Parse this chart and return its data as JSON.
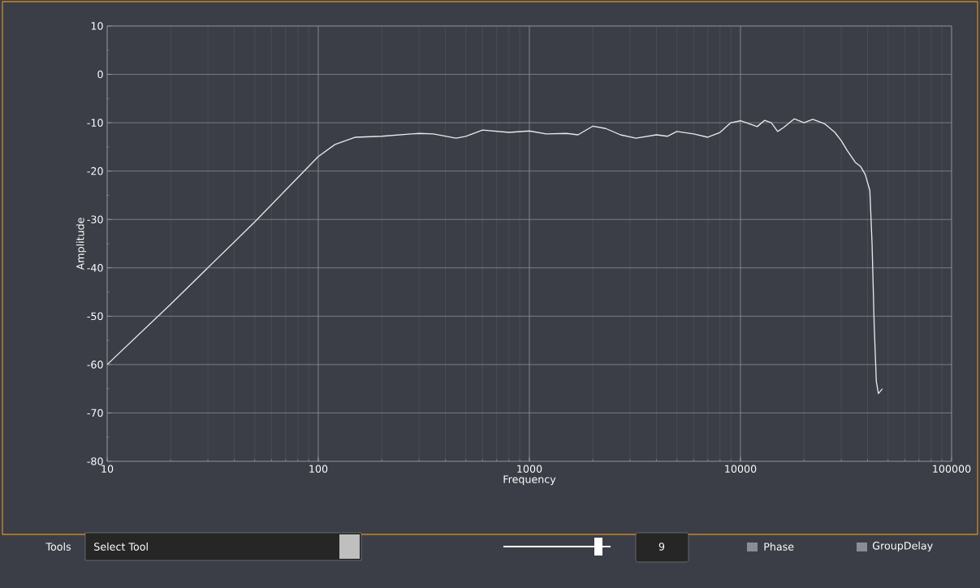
{
  "chart_data": {
    "type": "line",
    "xlabel": "Frequency",
    "ylabel": "Amplitude",
    "x": [
      10,
      20,
      50,
      100,
      120,
      150,
      200,
      300,
      350,
      450,
      500,
      600,
      800,
      1000,
      1200,
      1500,
      1700,
      2000,
      2300,
      2700,
      3200,
      4000,
      4500,
      5000,
      6000,
      7000,
      8000,
      9000,
      10000,
      11000,
      12000,
      13000,
      14000,
      15000,
      16000,
      18000,
      20000,
      22000,
      25000,
      28000,
      30000,
      32000,
      35000,
      37000,
      39000,
      41000,
      42000,
      43000,
      44000,
      45000,
      46000,
      47000
    ],
    "values": [
      -60,
      -47.5,
      -30.5,
      -17,
      -14.5,
      -13,
      -12.8,
      -12.2,
      -12.3,
      -13.2,
      -12.8,
      -11.5,
      -12,
      -11.7,
      -12.3,
      -12.2,
      -12.5,
      -10.7,
      -11.2,
      -12.5,
      -13.2,
      -12.5,
      -12.8,
      -11.8,
      -12.3,
      -13,
      -12,
      -10,
      -9.6,
      -10.2,
      -10.8,
      -9.5,
      -10,
      -11.8,
      -11,
      -9.2,
      -10,
      -9.3,
      -10.2,
      -12,
      -13.7,
      -15.7,
      -18.2,
      -19,
      -20.7,
      -24,
      -35,
      -52,
      -63.5,
      -66,
      -65.5,
      -65
    ],
    "color": "#e8e8e8",
    "xlim": [
      10,
      100000
    ],
    "ylim": [
      -80,
      10
    ],
    "xticks": [
      10,
      100,
      1000,
      10000,
      100000
    ],
    "yticks": [
      -80,
      -70,
      -60,
      -50,
      -40,
      -30,
      -20,
      -10,
      0,
      10
    ],
    "log": "x",
    "grid": true,
    "annotations": [
      "Tools",
      "Select Tool",
      "9",
      "Phase",
      "GroupDelay"
    ]
  }
}
